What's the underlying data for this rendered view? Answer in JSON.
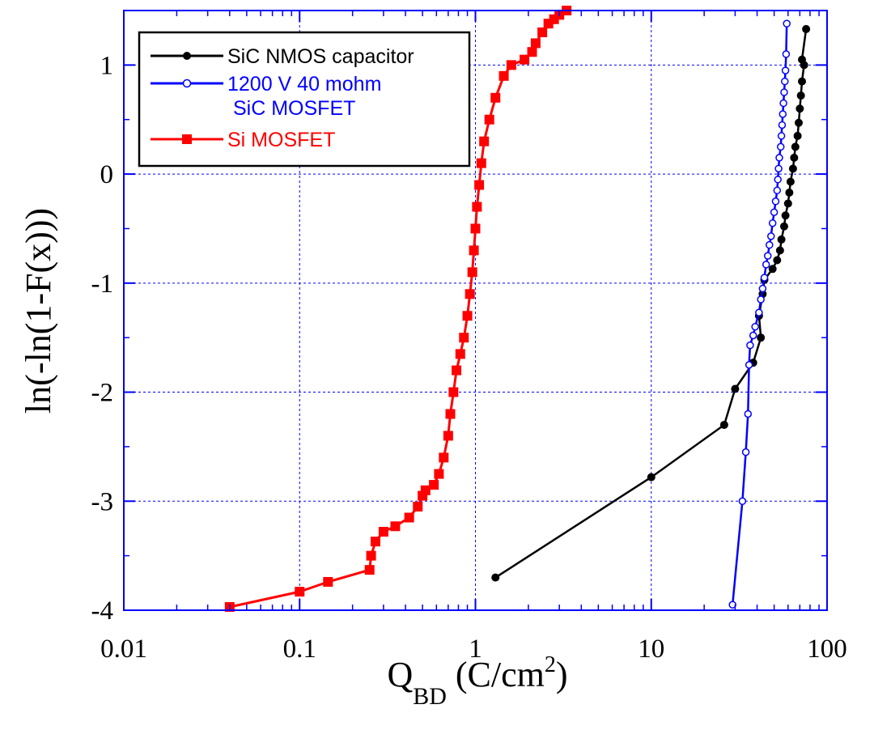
{
  "chart_data": {
    "type": "line",
    "title": "",
    "x_axis": {
      "scale": "log",
      "range": [
        0.01,
        100
      ],
      "ticks": [
        0.01,
        0.1,
        1,
        10,
        100
      ],
      "tick_labels": [
        "0.01",
        "0.1",
        "1",
        "10",
        "100"
      ],
      "label_main": "Q",
      "label_sub": "BD",
      "label_unit": " (C/cm",
      "label_sup": "2",
      "label_close": ")"
    },
    "y_axis": {
      "scale": "linear",
      "range": [
        -4,
        1.5
      ],
      "ticks": [
        -4,
        -3,
        -2,
        -1,
        0,
        1
      ],
      "tick_labels": [
        "-4",
        "-3",
        "-2",
        "-1",
        "0",
        "1"
      ],
      "label": "ln(-ln(1-F(x)))"
    },
    "grid": true,
    "legend_position": "top-left",
    "series": [
      {
        "name": "SiC NMOS capacitor",
        "color": "#000000",
        "marker": "filled-circle",
        "points": [
          [
            1.3,
            -3.7
          ],
          [
            10.0,
            -2.78
          ],
          [
            26.0,
            -2.3
          ],
          [
            30.0,
            -1.97
          ],
          [
            38.0,
            -1.73
          ],
          [
            42.0,
            -1.5
          ],
          [
            41.0,
            -1.3
          ],
          [
            43.0,
            -1.1
          ],
          [
            44.0,
            -0.97
          ],
          [
            49.0,
            -0.87
          ],
          [
            52.0,
            -0.79
          ],
          [
            54.0,
            -0.7
          ],
          [
            55.0,
            -0.6
          ],
          [
            57.0,
            -0.48
          ],
          [
            58.0,
            -0.38
          ],
          [
            60.0,
            -0.27
          ],
          [
            61.0,
            -0.17
          ],
          [
            62.0,
            -0.07
          ],
          [
            64.0,
            0.05
          ],
          [
            65.0,
            0.15
          ],
          [
            66.0,
            0.25
          ],
          [
            68.0,
            0.35
          ],
          [
            69.0,
            0.47
          ],
          [
            70.0,
            0.6
          ],
          [
            71.0,
            0.72
          ],
          [
            72.0,
            0.85
          ],
          [
            74.0,
            1.0
          ],
          [
            72.0,
            1.05
          ],
          [
            76.0,
            1.33
          ]
        ]
      },
      {
        "name": "1200 V 40 mohm",
        "name_line2": "SiC MOSFET",
        "color": "#0000ff",
        "marker": "open-circle",
        "points": [
          [
            29.0,
            -3.95
          ],
          [
            33.0,
            -3.0
          ],
          [
            34.5,
            -2.55
          ],
          [
            35.5,
            -2.2
          ],
          [
            36.0,
            -1.75
          ],
          [
            36.5,
            -1.57
          ],
          [
            38.0,
            -1.48
          ],
          [
            39.0,
            -1.4
          ],
          [
            41.0,
            -1.27
          ],
          [
            42.0,
            -1.15
          ],
          [
            43.0,
            -1.05
          ],
          [
            44.0,
            -0.95
          ],
          [
            45.0,
            -0.83
          ],
          [
            46.0,
            -0.75
          ],
          [
            47.0,
            -0.65
          ],
          [
            48.0,
            -0.57
          ],
          [
            49.0,
            -0.45
          ],
          [
            50.0,
            -0.35
          ],
          [
            51.0,
            -0.25
          ],
          [
            52.0,
            -0.15
          ],
          [
            52.5,
            -0.05
          ],
          [
            53.0,
            0.05
          ],
          [
            53.5,
            0.15
          ],
          [
            54.5,
            0.25
          ],
          [
            55.0,
            0.35
          ],
          [
            55.5,
            0.45
          ],
          [
            56.0,
            0.55
          ],
          [
            56.5,
            0.65
          ],
          [
            57.0,
            0.75
          ],
          [
            57.5,
            0.85
          ],
          [
            58.0,
            0.95
          ],
          [
            58.5,
            1.1
          ],
          [
            59.0,
            1.38
          ]
        ]
      },
      {
        "name": "Si MOSFET",
        "color": "#ff0000",
        "marker": "filled-square",
        "points": [
          [
            0.04,
            -3.97
          ],
          [
            0.1,
            -3.83
          ],
          [
            0.145,
            -3.74
          ],
          [
            0.25,
            -3.63
          ],
          [
            0.255,
            -3.5
          ],
          [
            0.27,
            -3.37
          ],
          [
            0.3,
            -3.28
          ],
          [
            0.35,
            -3.23
          ],
          [
            0.42,
            -3.15
          ],
          [
            0.47,
            -3.05
          ],
          [
            0.5,
            -2.95
          ],
          [
            0.52,
            -2.9
          ],
          [
            0.58,
            -2.85
          ],
          [
            0.62,
            -2.75
          ],
          [
            0.66,
            -2.6
          ],
          [
            0.7,
            -2.4
          ],
          [
            0.72,
            -2.2
          ],
          [
            0.75,
            -2.0
          ],
          [
            0.78,
            -1.8
          ],
          [
            0.82,
            -1.65
          ],
          [
            0.86,
            -1.5
          ],
          [
            0.9,
            -1.3
          ],
          [
            0.93,
            -1.1
          ],
          [
            0.96,
            -0.9
          ],
          [
            0.98,
            -0.7
          ],
          [
            1.0,
            -0.5
          ],
          [
            1.02,
            -0.3
          ],
          [
            1.05,
            -0.1
          ],
          [
            1.08,
            0.1
          ],
          [
            1.12,
            0.3
          ],
          [
            1.2,
            0.5
          ],
          [
            1.3,
            0.7
          ],
          [
            1.45,
            0.9
          ],
          [
            1.6,
            1.0
          ],
          [
            1.9,
            1.05
          ],
          [
            2.1,
            1.12
          ],
          [
            2.2,
            1.2
          ],
          [
            2.4,
            1.3
          ],
          [
            2.6,
            1.38
          ],
          [
            2.8,
            1.42
          ],
          [
            3.0,
            1.46
          ],
          [
            3.3,
            1.5
          ]
        ]
      }
    ]
  }
}
